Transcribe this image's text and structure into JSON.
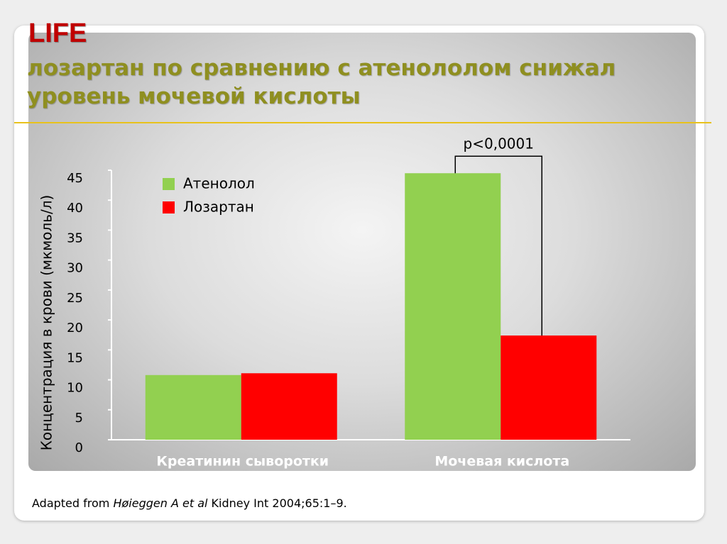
{
  "chart_data": {
    "type": "bar",
    "title": "LIFE",
    "subtitle": [
      "лозартан по сравнению с атенололом снижал",
      "уровень мочевой кислоты"
    ],
    "y_label": "Концентрация в крови (мкмоль/л)",
    "categories": [
      "Креатинин сыворотки",
      "Мочевая кислота"
    ],
    "series": [
      {
        "name": "Атенолол",
        "color": "#92d050",
        "values": [
          10.8,
          44.5
        ]
      },
      {
        "name": "Лозартан",
        "color": "#ff0000",
        "values": [
          11.1,
          17.4
        ]
      }
    ],
    "ylim": [
      0,
      45
    ],
    "yticks": [
      0,
      5,
      10,
      15,
      20,
      25,
      30,
      35,
      40,
      45
    ],
    "annotation": "p<0,0001",
    "legend": "upper left",
    "source": {
      "prefix": "Adapted from",
      "author": "Høieggen A et al",
      "suffix": "Kidney Int 2004;65:1–9."
    }
  }
}
